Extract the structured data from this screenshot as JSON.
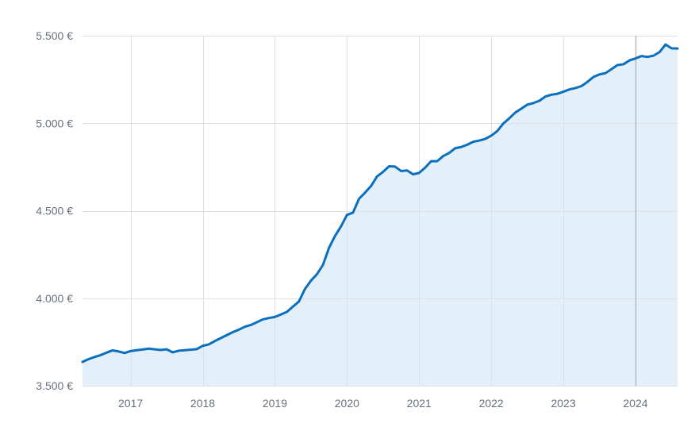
{
  "chart_data": {
    "type": "area",
    "x": [
      "2016-05",
      "2016-06",
      "2016-07",
      "2016-08",
      "2016-09",
      "2016-10",
      "2016-11",
      "2016-12",
      "2017-01",
      "2017-02",
      "2017-03",
      "2017-04",
      "2017-05",
      "2017-06",
      "2017-07",
      "2017-08",
      "2017-09",
      "2017-10",
      "2017-11",
      "2017-12",
      "2018-01",
      "2018-02",
      "2018-03",
      "2018-04",
      "2018-05",
      "2018-06",
      "2018-07",
      "2018-08",
      "2018-09",
      "2018-10",
      "2018-11",
      "2018-12",
      "2019-01",
      "2019-02",
      "2019-03",
      "2019-04",
      "2019-05",
      "2019-06",
      "2019-07",
      "2019-08",
      "2019-09",
      "2019-10",
      "2019-11",
      "2019-12",
      "2020-01",
      "2020-02",
      "2020-03",
      "2020-04",
      "2020-05",
      "2020-06",
      "2020-07",
      "2020-08",
      "2020-09",
      "2020-10",
      "2020-11",
      "2020-12",
      "2021-01",
      "2021-02",
      "2021-03",
      "2021-04",
      "2021-05",
      "2021-06",
      "2021-07",
      "2021-08",
      "2021-09",
      "2021-10",
      "2021-11",
      "2021-12",
      "2022-01",
      "2022-02",
      "2022-03",
      "2022-04",
      "2022-05",
      "2022-06",
      "2022-07",
      "2022-08",
      "2022-09",
      "2022-10",
      "2022-11",
      "2022-12",
      "2023-01",
      "2023-02",
      "2023-03",
      "2023-04",
      "2023-05",
      "2023-06",
      "2023-07",
      "2023-08",
      "2023-09",
      "2023-10",
      "2023-11",
      "2023-12",
      "2024-01",
      "2024-02",
      "2024-03",
      "2024-04",
      "2024-05",
      "2024-06",
      "2024-07",
      "2024-08"
    ],
    "series": [
      {
        "values": [
          3636,
          3652,
          3664,
          3675,
          3689,
          3702,
          3696,
          3687,
          3698,
          3703,
          3707,
          3712,
          3708,
          3704,
          3708,
          3691,
          3700,
          3703,
          3706,
          3709,
          3728,
          3736,
          3755,
          3772,
          3789,
          3806,
          3820,
          3837,
          3847,
          3863,
          3879,
          3887,
          3893,
          3907,
          3922,
          3952,
          3981,
          4052,
          4100,
          4137,
          4190,
          4287,
          4355,
          4410,
          4476,
          4489,
          4568,
          4603,
          4641,
          4696,
          4722,
          4754,
          4752,
          4727,
          4730,
          4708,
          4716,
          4746,
          4783,
          4783,
          4812,
          4830,
          4857,
          4864,
          4877,
          4894,
          4901,
          4910,
          4929,
          4955,
          4998,
          5028,
          5061,
          5083,
          5106,
          5115,
          5128,
          5152,
          5163,
          5168,
          5180,
          5193,
          5201,
          5212,
          5236,
          5264,
          5279,
          5286,
          5309,
          5332,
          5337,
          5359,
          5370,
          5384,
          5379,
          5386,
          5406,
          5450,
          5428,
          5427
        ]
      }
    ],
    "xlim": [
      "2016-05",
      "2024-08"
    ],
    "ylim": [
      3500,
      5500
    ],
    "yticks": [
      {
        "value": 3500,
        "label": "3.500 €"
      },
      {
        "value": 4000,
        "label": "4.000 €"
      },
      {
        "value": 4500,
        "label": "4.500 €"
      },
      {
        "value": 5000,
        "label": "5.000 €"
      },
      {
        "value": 5500,
        "label": "5.500 €"
      }
    ],
    "xticks": [
      {
        "value": "2017-01",
        "label": "2017"
      },
      {
        "value": "2018-01",
        "label": "2018"
      },
      {
        "value": "2019-01",
        "label": "2019"
      },
      {
        "value": "2020-01",
        "label": "2020"
      },
      {
        "value": "2021-01",
        "label": "2021"
      },
      {
        "value": "2022-01",
        "label": "2022"
      },
      {
        "value": "2023-01",
        "label": "2023"
      },
      {
        "value": "2024-01",
        "label": "2024"
      }
    ],
    "crosshair_x": "2024-01",
    "grid": true,
    "legend": "none",
    "colors": {
      "line": "#0b6fbd",
      "fill": "#e3f0f9",
      "grid": "#dde1e6",
      "crosshair": "#b3bbc6",
      "tick_label": "#66707c",
      "background": "#ffffff"
    }
  }
}
